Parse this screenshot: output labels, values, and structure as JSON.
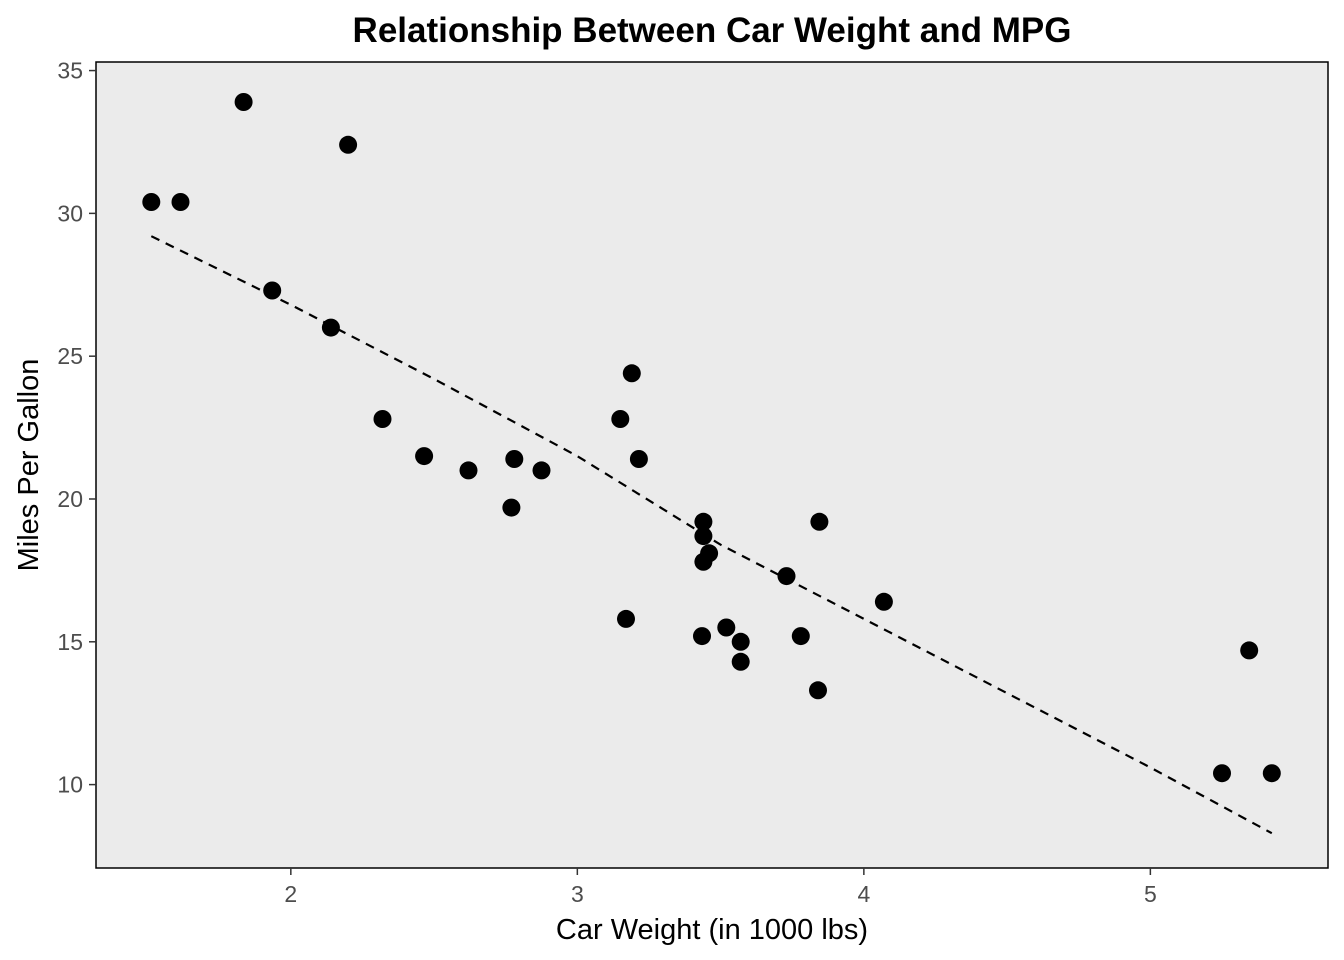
{
  "chart_data": {
    "type": "scatter",
    "title": "Relationship Between Car Weight and MPG",
    "xlabel": "Car Weight (in 1000 lbs)",
    "ylabel": "Miles Per Gallon",
    "xlim": [
      1.32,
      5.62
    ],
    "ylim": [
      7.08,
      35.3
    ],
    "x_ticks": [
      2,
      3,
      4,
      5
    ],
    "y_ticks": [
      10,
      15,
      20,
      25,
      30,
      35
    ],
    "grid": false,
    "legend": "none",
    "colors": {
      "panel_background": "#ebebeb",
      "panel_border": "#000000",
      "point": "#000000",
      "trend_line": "#000000",
      "tick_label": "#4d4d4d"
    },
    "points": {
      "x": [
        2.62,
        2.875,
        2.32,
        3.215,
        3.44,
        3.46,
        3.57,
        3.19,
        3.15,
        3.44,
        3.44,
        4.07,
        3.73,
        3.78,
        5.25,
        5.424,
        5.345,
        2.2,
        1.615,
        1.835,
        2.465,
        3.52,
        3.435,
        3.84,
        3.845,
        1.935,
        2.14,
        1.513,
        3.17,
        2.77,
        3.57,
        2.78
      ],
      "y": [
        21.0,
        21.0,
        22.8,
        21.4,
        18.7,
        18.1,
        14.3,
        24.4,
        22.8,
        19.2,
        17.8,
        16.4,
        17.3,
        15.2,
        10.4,
        10.4,
        14.7,
        32.4,
        30.4,
        33.9,
        21.5,
        15.5,
        15.2,
        13.3,
        19.2,
        27.3,
        26.0,
        30.4,
        15.8,
        19.7,
        15.0,
        21.4
      ]
    },
    "trend_line": {
      "style": "dashed",
      "x": [
        1.513,
        2.0,
        2.5,
        3.0,
        3.5,
        4.0,
        4.5,
        5.0,
        5.424
      ],
      "y": [
        29.2,
        26.8,
        24.2,
        21.5,
        18.4,
        15.8,
        13.2,
        10.6,
        8.3
      ]
    }
  }
}
